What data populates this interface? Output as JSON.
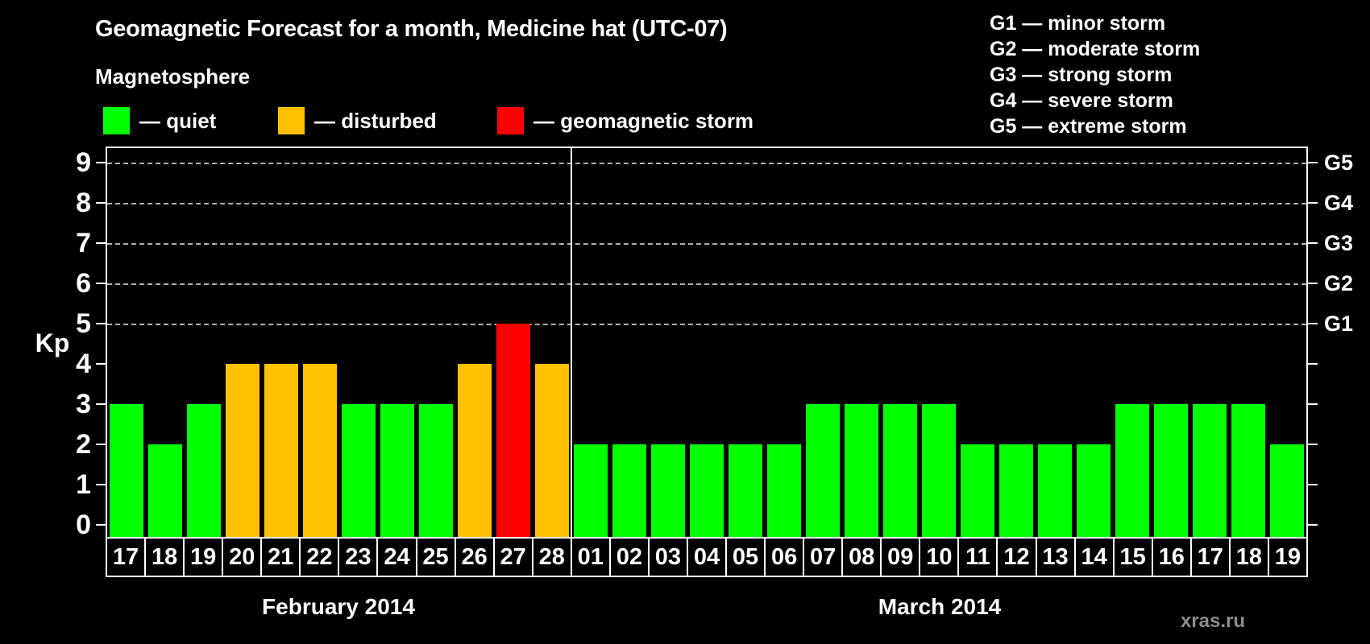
{
  "title": "Geomagnetic Forecast for a month, Medicine hat (UTC-07)",
  "subtitle": "Magnetosphere",
  "legend": {
    "items": [
      {
        "key": "quiet",
        "label": "— quiet",
        "color": "#00ff00"
      },
      {
        "key": "disturbed",
        "label": "— disturbed",
        "color": "#ffc000"
      },
      {
        "key": "storm",
        "label": "— geomagnetic storm",
        "color": "#ff0000"
      }
    ]
  },
  "storm_scale_legend": [
    "G1 — minor storm",
    "G2 — moderate storm",
    "G3 — strong storm",
    "G4 — severe storm",
    "G5 — extreme storm"
  ],
  "watermark": "xras.ru",
  "chart_data": {
    "type": "bar",
    "ylabel": "Kp",
    "ylim": [
      0,
      9
    ],
    "yticks": [
      0,
      1,
      2,
      3,
      4,
      5,
      6,
      7,
      8,
      9
    ],
    "gridlines_at": [
      5,
      6,
      7,
      8,
      9
    ],
    "right_axis_labels": [
      {
        "kp": 5,
        "label": "G1"
      },
      {
        "kp": 6,
        "label": "G2"
      },
      {
        "kp": 7,
        "label": "G3"
      },
      {
        "kp": 8,
        "label": "G4"
      },
      {
        "kp": 9,
        "label": "G5"
      }
    ],
    "colors": {
      "quiet": "#00ff00",
      "disturbed": "#ffc000",
      "storm": "#ff0000"
    },
    "sections": [
      {
        "month": "February 2014",
        "days": [
          "17",
          "18",
          "19",
          "20",
          "21",
          "22",
          "23",
          "24",
          "25",
          "26",
          "27",
          "28"
        ],
        "values": [
          3,
          2,
          3,
          4,
          4,
          4,
          3,
          3,
          3,
          4,
          5,
          4
        ],
        "states": [
          "quiet",
          "quiet",
          "quiet",
          "disturbed",
          "disturbed",
          "disturbed",
          "quiet",
          "quiet",
          "quiet",
          "disturbed",
          "storm",
          "disturbed"
        ]
      },
      {
        "month": "March 2014",
        "days": [
          "01",
          "02",
          "03",
          "04",
          "05",
          "06",
          "07",
          "08",
          "09",
          "10",
          "11",
          "12",
          "13",
          "14",
          "15",
          "16",
          "17",
          "18",
          "19"
        ],
        "values": [
          2,
          2,
          2,
          2,
          2,
          2,
          3,
          3,
          3,
          3,
          2,
          2,
          2,
          2,
          3,
          3,
          3,
          3,
          2
        ],
        "states": [
          "quiet",
          "quiet",
          "quiet",
          "quiet",
          "quiet",
          "quiet",
          "quiet",
          "quiet",
          "quiet",
          "quiet",
          "quiet",
          "quiet",
          "quiet",
          "quiet",
          "quiet",
          "quiet",
          "quiet",
          "quiet",
          "quiet"
        ]
      }
    ]
  }
}
